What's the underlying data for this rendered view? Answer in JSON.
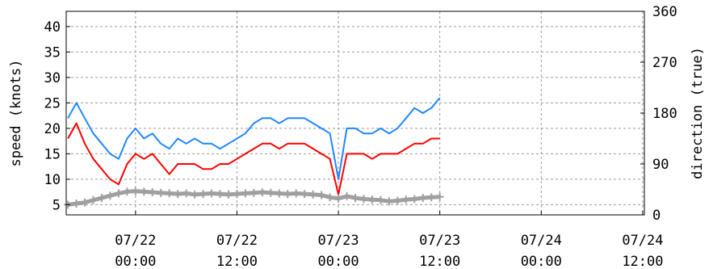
{
  "chart_data": {
    "type": "line",
    "xlabel": "",
    "ylabel": "speed (knots)",
    "ylabel_right": "direction (true)",
    "x_tick_labels": [
      [
        "07/22",
        "00:00"
      ],
      [
        "07/22",
        "12:00"
      ],
      [
        "07/23",
        "00:00"
      ],
      [
        "07/23",
        "12:00"
      ],
      [
        "07/24",
        "00:00"
      ],
      [
        "07/24",
        "12:00"
      ]
    ],
    "x_ticks_hours": [
      0,
      12,
      24,
      36,
      48,
      60
    ],
    "xlim_hours": [
      -8.2,
      60.2
    ],
    "ylim": [
      3,
      43
    ],
    "yticks": [
      5,
      10,
      15,
      20,
      25,
      30,
      35,
      40
    ],
    "ylim_right": [
      0,
      360
    ],
    "yticks_right": [
      0,
      90,
      180,
      270,
      360
    ],
    "grid": true,
    "series": [
      {
        "role": "gust",
        "axis": "left",
        "color": "#1f87ff",
        "x": [
          -8,
          -7,
          -6,
          -5,
          -4,
          -3,
          -2,
          -1,
          0,
          1,
          2,
          3,
          4,
          5,
          6,
          7,
          8,
          9,
          10,
          11,
          12,
          13,
          14,
          15,
          16,
          17,
          18,
          19,
          20,
          21,
          22,
          23,
          24,
          25,
          26,
          27,
          28,
          29,
          30,
          31,
          32,
          33,
          34,
          35,
          36
        ],
        "y": [
          22,
          25,
          22,
          19,
          17,
          15,
          14,
          18,
          20,
          18,
          19,
          17,
          16,
          18,
          17,
          18,
          17,
          17,
          16,
          17,
          18,
          19,
          21,
          22,
          22,
          21,
          22,
          22,
          22,
          21,
          20,
          19,
          10,
          20,
          20,
          19,
          19,
          20,
          19,
          20,
          22,
          24,
          23,
          24,
          26
        ]
      },
      {
        "role": "speed",
        "axis": "left",
        "color": "#ff0000",
        "x": [
          -8,
          -7,
          -6,
          -5,
          -4,
          -3,
          -2,
          -1,
          0,
          1,
          2,
          3,
          4,
          5,
          6,
          7,
          8,
          9,
          10,
          11,
          12,
          13,
          14,
          15,
          16,
          17,
          18,
          19,
          20,
          21,
          22,
          23,
          24,
          25,
          26,
          27,
          28,
          29,
          30,
          31,
          32,
          33,
          34,
          35,
          36
        ],
        "y": [
          18,
          21,
          17,
          14,
          12,
          10,
          9,
          13,
          15,
          14,
          15,
          13,
          11,
          13,
          13,
          13,
          12,
          12,
          13,
          13,
          14,
          15,
          16,
          17,
          17,
          16,
          17,
          17,
          17,
          16,
          15,
          14,
          7,
          15,
          15,
          15,
          14,
          15,
          15,
          15,
          16,
          17,
          17,
          18,
          18
        ]
      },
      {
        "role": "direction",
        "axis": "right",
        "color": "#a0a0a0",
        "x": [
          -8,
          -7,
          -6,
          -5,
          -4,
          -3,
          -2,
          -1,
          0,
          1,
          2,
          3,
          4,
          5,
          6,
          7,
          8,
          9,
          10,
          11,
          12,
          13,
          14,
          15,
          16,
          17,
          18,
          19,
          20,
          21,
          22,
          23,
          24,
          25,
          26,
          27,
          28,
          29,
          30,
          31,
          32,
          33,
          34,
          35,
          36
        ],
        "y": [
          18,
          20,
          22,
          26,
          30,
          34,
          38,
          41,
          42,
          41,
          40,
          39,
          38,
          37,
          38,
          36,
          37,
          38,
          37,
          36,
          37,
          38,
          39,
          40,
          39,
          38,
          37,
          38,
          37,
          36,
          35,
          31,
          29,
          33,
          30,
          28,
          27,
          26,
          24,
          25,
          27,
          28,
          30,
          31,
          32
        ]
      }
    ]
  }
}
